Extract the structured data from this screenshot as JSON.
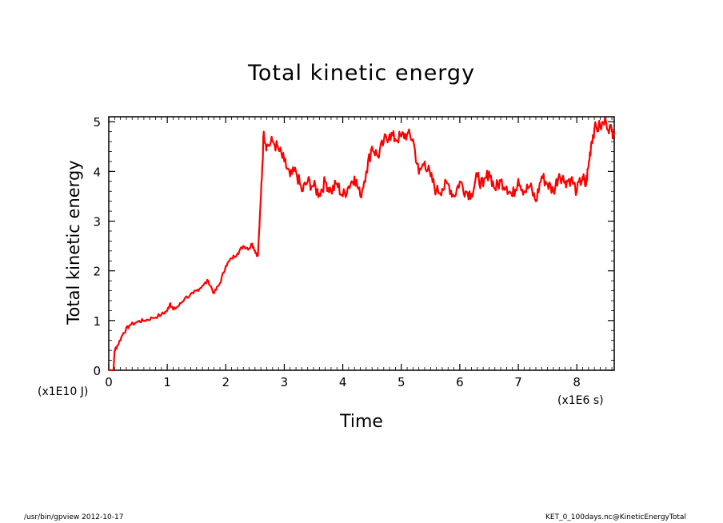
{
  "chart_data": {
    "type": "line",
    "title": "Total kinetic energy",
    "xlabel": "Time",
    "ylabel": "Total kinetic energy",
    "x_unit": "(x1E6 s)",
    "y_unit": "(x1E10 J)",
    "xlim": [
      0,
      8.64
    ],
    "ylim": [
      0,
      5.1
    ],
    "xticks": [
      "0",
      "1",
      "2",
      "3",
      "4",
      "5",
      "6",
      "7",
      "8"
    ],
    "yticks": [
      "0",
      "1",
      "2",
      "3",
      "4",
      "5"
    ],
    "grid": false,
    "series": [
      {
        "color": "#ff0000",
        "x": [
          0,
          0.08,
          0.1,
          0.15,
          0.25,
          0.35,
          0.5,
          0.6,
          0.75,
          0.9,
          1.0,
          1.05,
          1.1,
          1.2,
          1.3,
          1.45,
          1.5,
          1.6,
          1.7,
          1.8,
          1.9,
          2.0,
          2.1,
          2.2,
          2.3,
          2.4,
          2.45,
          2.5,
          2.55,
          2.6,
          2.65,
          2.7,
          2.8,
          2.9,
          3.0,
          3.1,
          3.2,
          3.3,
          3.4,
          3.5,
          3.6,
          3.7,
          3.8,
          3.9,
          4.0,
          4.1,
          4.2,
          4.3,
          4.4,
          4.5,
          4.6,
          4.7,
          4.8,
          4.9,
          5.0,
          5.1,
          5.2,
          5.3,
          5.4,
          5.5,
          5.6,
          5.7,
          5.8,
          5.9,
          6.0,
          6.1,
          6.2,
          6.3,
          6.4,
          6.5,
          6.6,
          6.7,
          6.8,
          6.9,
          7.0,
          7.1,
          7.2,
          7.3,
          7.4,
          7.5,
          7.6,
          7.7,
          7.8,
          7.9,
          8.0,
          8.1,
          8.15,
          8.2,
          8.25,
          8.3,
          8.4,
          8.5,
          8.6,
          8.64
        ],
        "y": [
          0,
          0,
          0.4,
          0.5,
          0.75,
          0.9,
          0.98,
          1.0,
          1.05,
          1.12,
          1.2,
          1.35,
          1.22,
          1.3,
          1.45,
          1.55,
          1.6,
          1.7,
          1.8,
          1.55,
          1.75,
          2.1,
          2.25,
          2.35,
          2.5,
          2.45,
          2.55,
          2.4,
          2.3,
          3.5,
          4.8,
          4.5,
          4.6,
          4.45,
          4.2,
          3.9,
          4.0,
          3.6,
          3.8,
          3.7,
          3.55,
          3.8,
          3.6,
          3.75,
          3.5,
          3.7,
          3.9,
          3.5,
          4.0,
          4.5,
          4.3,
          4.6,
          4.75,
          4.65,
          4.7,
          4.75,
          4.65,
          3.95,
          4.2,
          3.9,
          3.6,
          3.65,
          3.75,
          3.5,
          3.8,
          3.6,
          3.55,
          3.9,
          3.7,
          4.0,
          3.65,
          3.8,
          3.7,
          3.5,
          3.85,
          3.6,
          3.7,
          3.4,
          3.9,
          3.75,
          3.6,
          3.95,
          3.8,
          3.85,
          3.6,
          3.9,
          3.7,
          4.1,
          4.6,
          4.85,
          4.9,
          5.0,
          4.8,
          4.8
        ]
      }
    ]
  },
  "footer": {
    "left": "/usr/bin/gpview   2012-10-17",
    "right": "KET_0_100days.nc@KineticEnergyTotal"
  }
}
